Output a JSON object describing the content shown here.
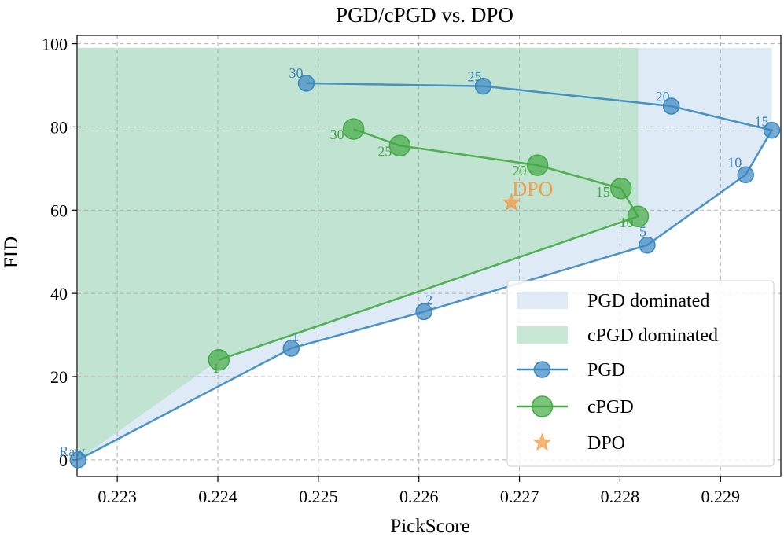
{
  "chart_data": {
    "type": "scatter",
    "title": "PGD/cPGD vs. DPO",
    "xlabel": "PickScore",
    "ylabel": "FID",
    "xlim": [
      0.2226,
      0.2296
    ],
    "ylim": [
      -4,
      102
    ],
    "xticks": [
      0.223,
      0.224,
      0.225,
      0.226,
      0.227,
      0.228,
      0.229
    ],
    "xtick_labels": [
      "0.223",
      "0.224",
      "0.225",
      "0.226",
      "0.227",
      "0.228",
      "0.229"
    ],
    "yticks": [
      0,
      20,
      40,
      60,
      80,
      100
    ],
    "ytick_labels": [
      "0",
      "20",
      "40",
      "60",
      "80",
      "100"
    ],
    "grid": true,
    "legend_position": "bottom-right",
    "series": [
      {
        "name": "PGD",
        "color": "#3a87c0",
        "labels": [
          "Raw",
          "1",
          "2",
          "5",
          "10",
          "15",
          "20",
          "25",
          "30"
        ],
        "x": [
          0.22261,
          0.22473,
          0.22605,
          0.22827,
          0.22925,
          0.22951,
          0.22851,
          0.22664,
          0.22488
        ],
        "y": [
          0.0,
          26.8,
          35.6,
          51.6,
          68.5,
          79.2,
          85.0,
          89.8,
          90.5
        ]
      },
      {
        "name": "cPGD",
        "color": "#44aa44",
        "labels": [
          "1",
          "10",
          "15",
          "20",
          "25",
          "30"
        ],
        "x": [
          0.22401,
          0.22818,
          0.22801,
          0.22718,
          0.22581,
          0.22535
        ],
        "y": [
          24.0,
          58.5,
          65.2,
          70.8,
          75.5,
          79.5
        ]
      },
      {
        "name": "DPO",
        "color": "#f39c4a",
        "x": [
          0.22692
        ],
        "y": [
          61.8
        ]
      }
    ],
    "regions": [
      {
        "name": "PGD dominated",
        "color": "#c8dcf0"
      },
      {
        "name": "cPGD dominated",
        "color": "#b6e0c6"
      }
    ],
    "annotations": [
      {
        "text": "DPO",
        "color": "#f39c4a"
      }
    ]
  }
}
